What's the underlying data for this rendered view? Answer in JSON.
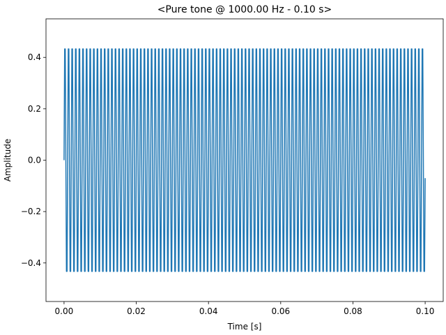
{
  "chart_data": {
    "type": "line",
    "title": "<Pure tone @ 1000.00 Hz - 0.10 s>",
    "xlabel": "Time [s]",
    "ylabel": "Amplitude",
    "xlim": [
      -0.005,
      0.105
    ],
    "ylim": [
      -0.55,
      0.55
    ],
    "xticks": [
      0.0,
      0.02,
      0.04,
      0.06,
      0.08,
      0.1
    ],
    "xtick_labels": [
      "0.00",
      "0.02",
      "0.04",
      "0.06",
      "0.08",
      "0.10"
    ],
    "yticks": [
      -0.4,
      -0.2,
      0.0,
      0.2,
      0.4
    ],
    "ytick_labels": [
      "−0.4",
      "−0.2",
      "0.0",
      "0.2",
      "0.4"
    ],
    "grid": false,
    "series": [
      {
        "color": "#1f77b4",
        "waveform": "sine",
        "frequency_hz": 1000,
        "amplitude": 0.5,
        "duration_s": 0.1,
        "x_start": 0.0,
        "x_end": 0.1,
        "final_value": -0.07
      }
    ]
  }
}
